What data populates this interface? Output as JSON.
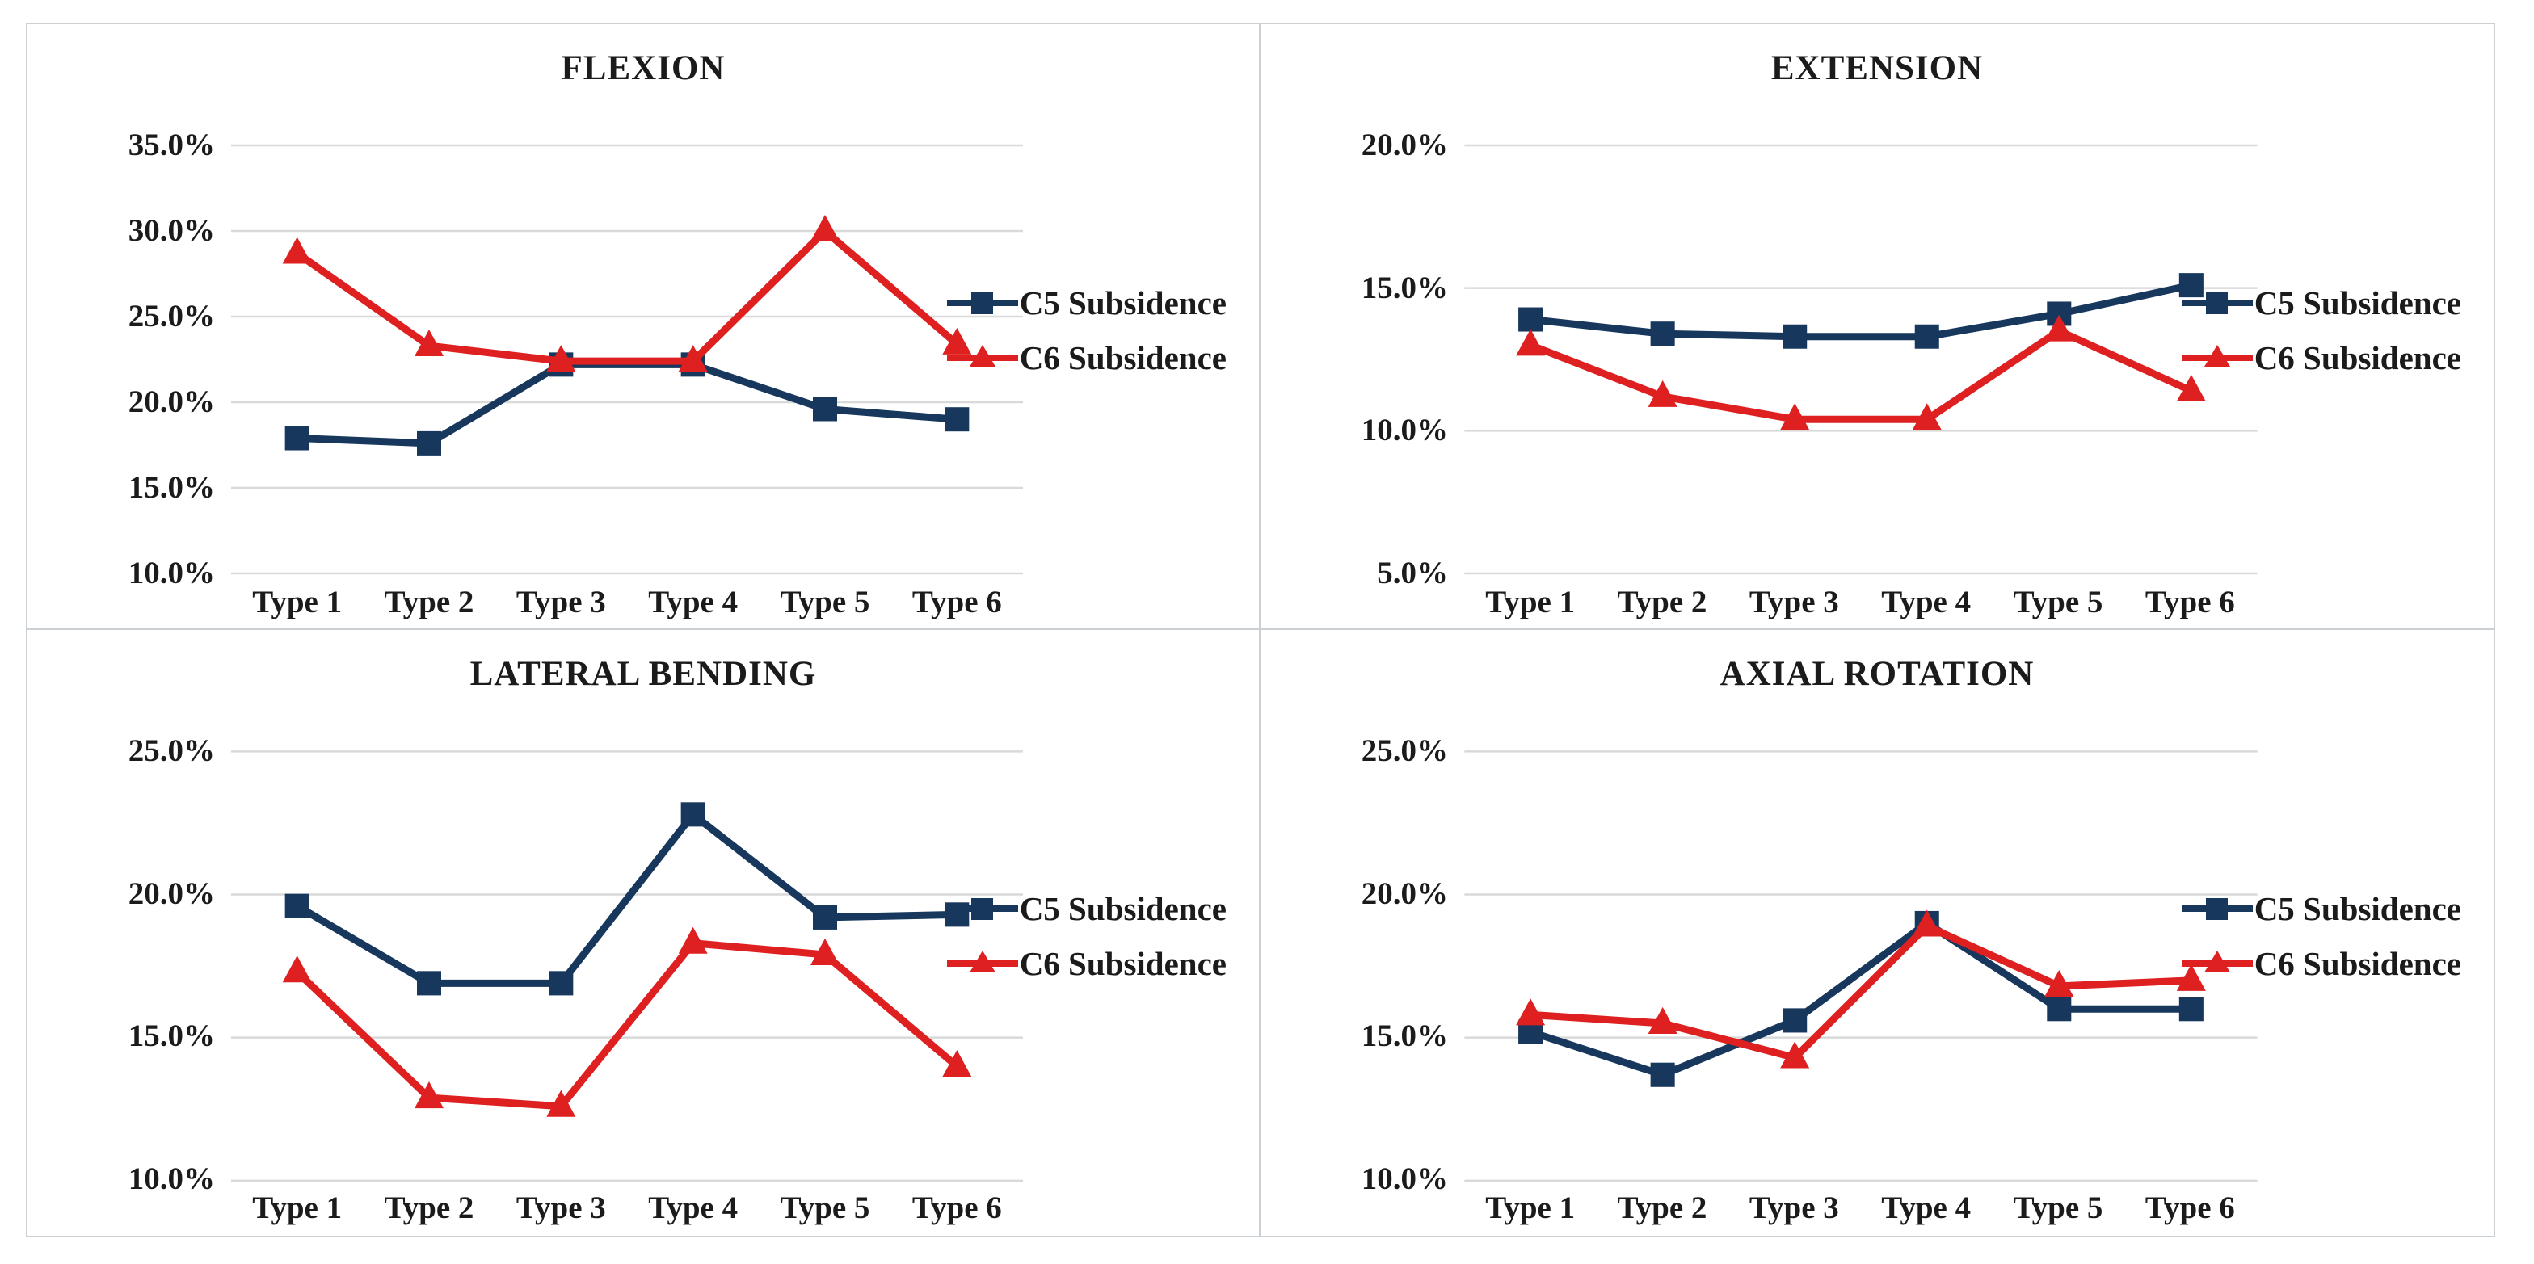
{
  "colors": {
    "c5": "#17375D",
    "c6": "#DE2020",
    "gridline": "#D9D9D9",
    "panel_border": "#CBD0D4",
    "text": "#1B1B1B",
    "background": "#FFFFFF"
  },
  "chart_data": [
    {
      "type": "line",
      "title": "FLEXION",
      "categories": [
        "Type 1",
        "Type 2",
        "Type 3",
        "Type 4",
        "Type 5",
        "Type 6"
      ],
      "ylim": [
        10,
        35
      ],
      "grid": "horizontal",
      "legend_position": "right",
      "y_ticks": [
        {
          "value": 35,
          "label": "35.0%"
        },
        {
          "value": 30,
          "label": "30.0%"
        },
        {
          "value": 25,
          "label": "25.0%"
        },
        {
          "value": 20,
          "label": "20.0%"
        },
        {
          "value": 15,
          "label": "15.0%"
        },
        {
          "value": 10,
          "label": "10.0%"
        }
      ],
      "series": [
        {
          "name": "C5 Subsidence",
          "color_key": "c5",
          "marker": "square",
          "values": [
            17.9,
            17.6,
            22.2,
            22.2,
            19.6,
            19.0
          ]
        },
        {
          "name": "C6 Subsidence",
          "color_key": "c6",
          "marker": "triangle",
          "values": [
            28.7,
            23.3,
            22.4,
            22.4,
            30.0,
            23.4
          ]
        }
      ]
    },
    {
      "type": "line",
      "title": "EXTENSION",
      "categories": [
        "Type 1",
        "Type 2",
        "Type 3",
        "Type 4",
        "Type 5",
        "Type 6"
      ],
      "ylim": [
        5,
        20
      ],
      "grid": "horizontal",
      "legend_position": "right",
      "y_ticks": [
        {
          "value": 20,
          "label": "20.0%"
        },
        {
          "value": 15,
          "label": "15.0%"
        },
        {
          "value": 10,
          "label": "10.0%"
        },
        {
          "value": 5,
          "label": "5.0%"
        }
      ],
      "series": [
        {
          "name": "C5 Subsidence",
          "color_key": "c5",
          "marker": "square",
          "values": [
            13.9,
            13.4,
            13.3,
            13.3,
            14.1,
            15.1
          ]
        },
        {
          "name": "C6 Subsidence",
          "color_key": "c6",
          "marker": "triangle",
          "values": [
            13.0,
            11.2,
            10.4,
            10.4,
            13.5,
            11.4
          ]
        }
      ]
    },
    {
      "type": "line",
      "title": "LATERAL BENDING",
      "categories": [
        "Type 1",
        "Type 2",
        "Type 3",
        "Type 4",
        "Type 5",
        "Type 6"
      ],
      "ylim": [
        10,
        25
      ],
      "grid": "horizontal",
      "legend_position": "right",
      "y_ticks": [
        {
          "value": 25,
          "label": "25.0%"
        },
        {
          "value": 20,
          "label": "20.0%"
        },
        {
          "value": 15,
          "label": "15.0%"
        },
        {
          "value": 10,
          "label": "10.0%"
        }
      ],
      "series": [
        {
          "name": "C5 Subsidence",
          "color_key": "c5",
          "marker": "square",
          "values": [
            19.6,
            16.9,
            16.9,
            22.8,
            19.2,
            19.3
          ]
        },
        {
          "name": "C6 Subsidence",
          "color_key": "c6",
          "marker": "triangle",
          "values": [
            17.3,
            12.9,
            12.6,
            18.3,
            17.9,
            14.0
          ]
        }
      ]
    },
    {
      "type": "line",
      "title": "AXIAL ROTATION",
      "categories": [
        "Type 1",
        "Type 2",
        "Type 3",
        "Type 4",
        "Type 5",
        "Type 6"
      ],
      "ylim": [
        10,
        25
      ],
      "grid": "horizontal",
      "legend_position": "right",
      "y_ticks": [
        {
          "value": 25,
          "label": "25.0%"
        },
        {
          "value": 20,
          "label": "20.0%"
        },
        {
          "value": 15,
          "label": "15.0%"
        },
        {
          "value": 10,
          "label": "10.0%"
        }
      ],
      "series": [
        {
          "name": "C5 Subsidence",
          "color_key": "c5",
          "marker": "square",
          "values": [
            15.2,
            13.7,
            15.6,
            19.0,
            16.0,
            16.0
          ]
        },
        {
          "name": "C6 Subsidence",
          "color_key": "c6",
          "marker": "triangle",
          "values": [
            15.8,
            15.5,
            14.3,
            18.9,
            16.8,
            17.0
          ]
        }
      ]
    }
  ]
}
